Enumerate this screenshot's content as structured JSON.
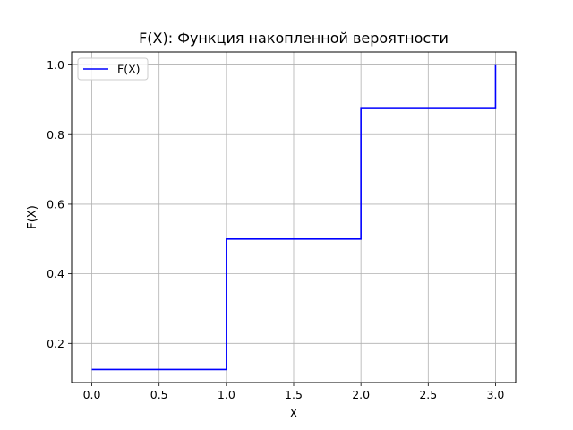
{
  "chart_data": {
    "type": "line",
    "drawstyle": "steps-post",
    "title": "F(X): Функция накопленной вероятности",
    "xlabel": "X",
    "ylabel": "F(X)",
    "xlim": [
      -0.15,
      3.15
    ],
    "ylim": [
      0.0875,
      1.0375
    ],
    "xticks": [
      0.0,
      0.5,
      1.0,
      1.5,
      2.0,
      2.5,
      3.0
    ],
    "xtick_labels": [
      "0.0",
      "0.5",
      "1.0",
      "1.5",
      "2.0",
      "2.5",
      "3.0"
    ],
    "yticks": [
      0.2,
      0.4,
      0.6,
      0.8,
      1.0
    ],
    "ytick_labels": [
      "0.2",
      "0.4",
      "0.6",
      "0.8",
      "1.0"
    ],
    "grid": true,
    "legend_position": "top-left",
    "series": [
      {
        "name": "F(X)",
        "color": "#0000ff",
        "x": [
          0,
          1,
          2,
          3
        ],
        "y": [
          0.125,
          0.5,
          0.875,
          1.0
        ]
      }
    ]
  }
}
